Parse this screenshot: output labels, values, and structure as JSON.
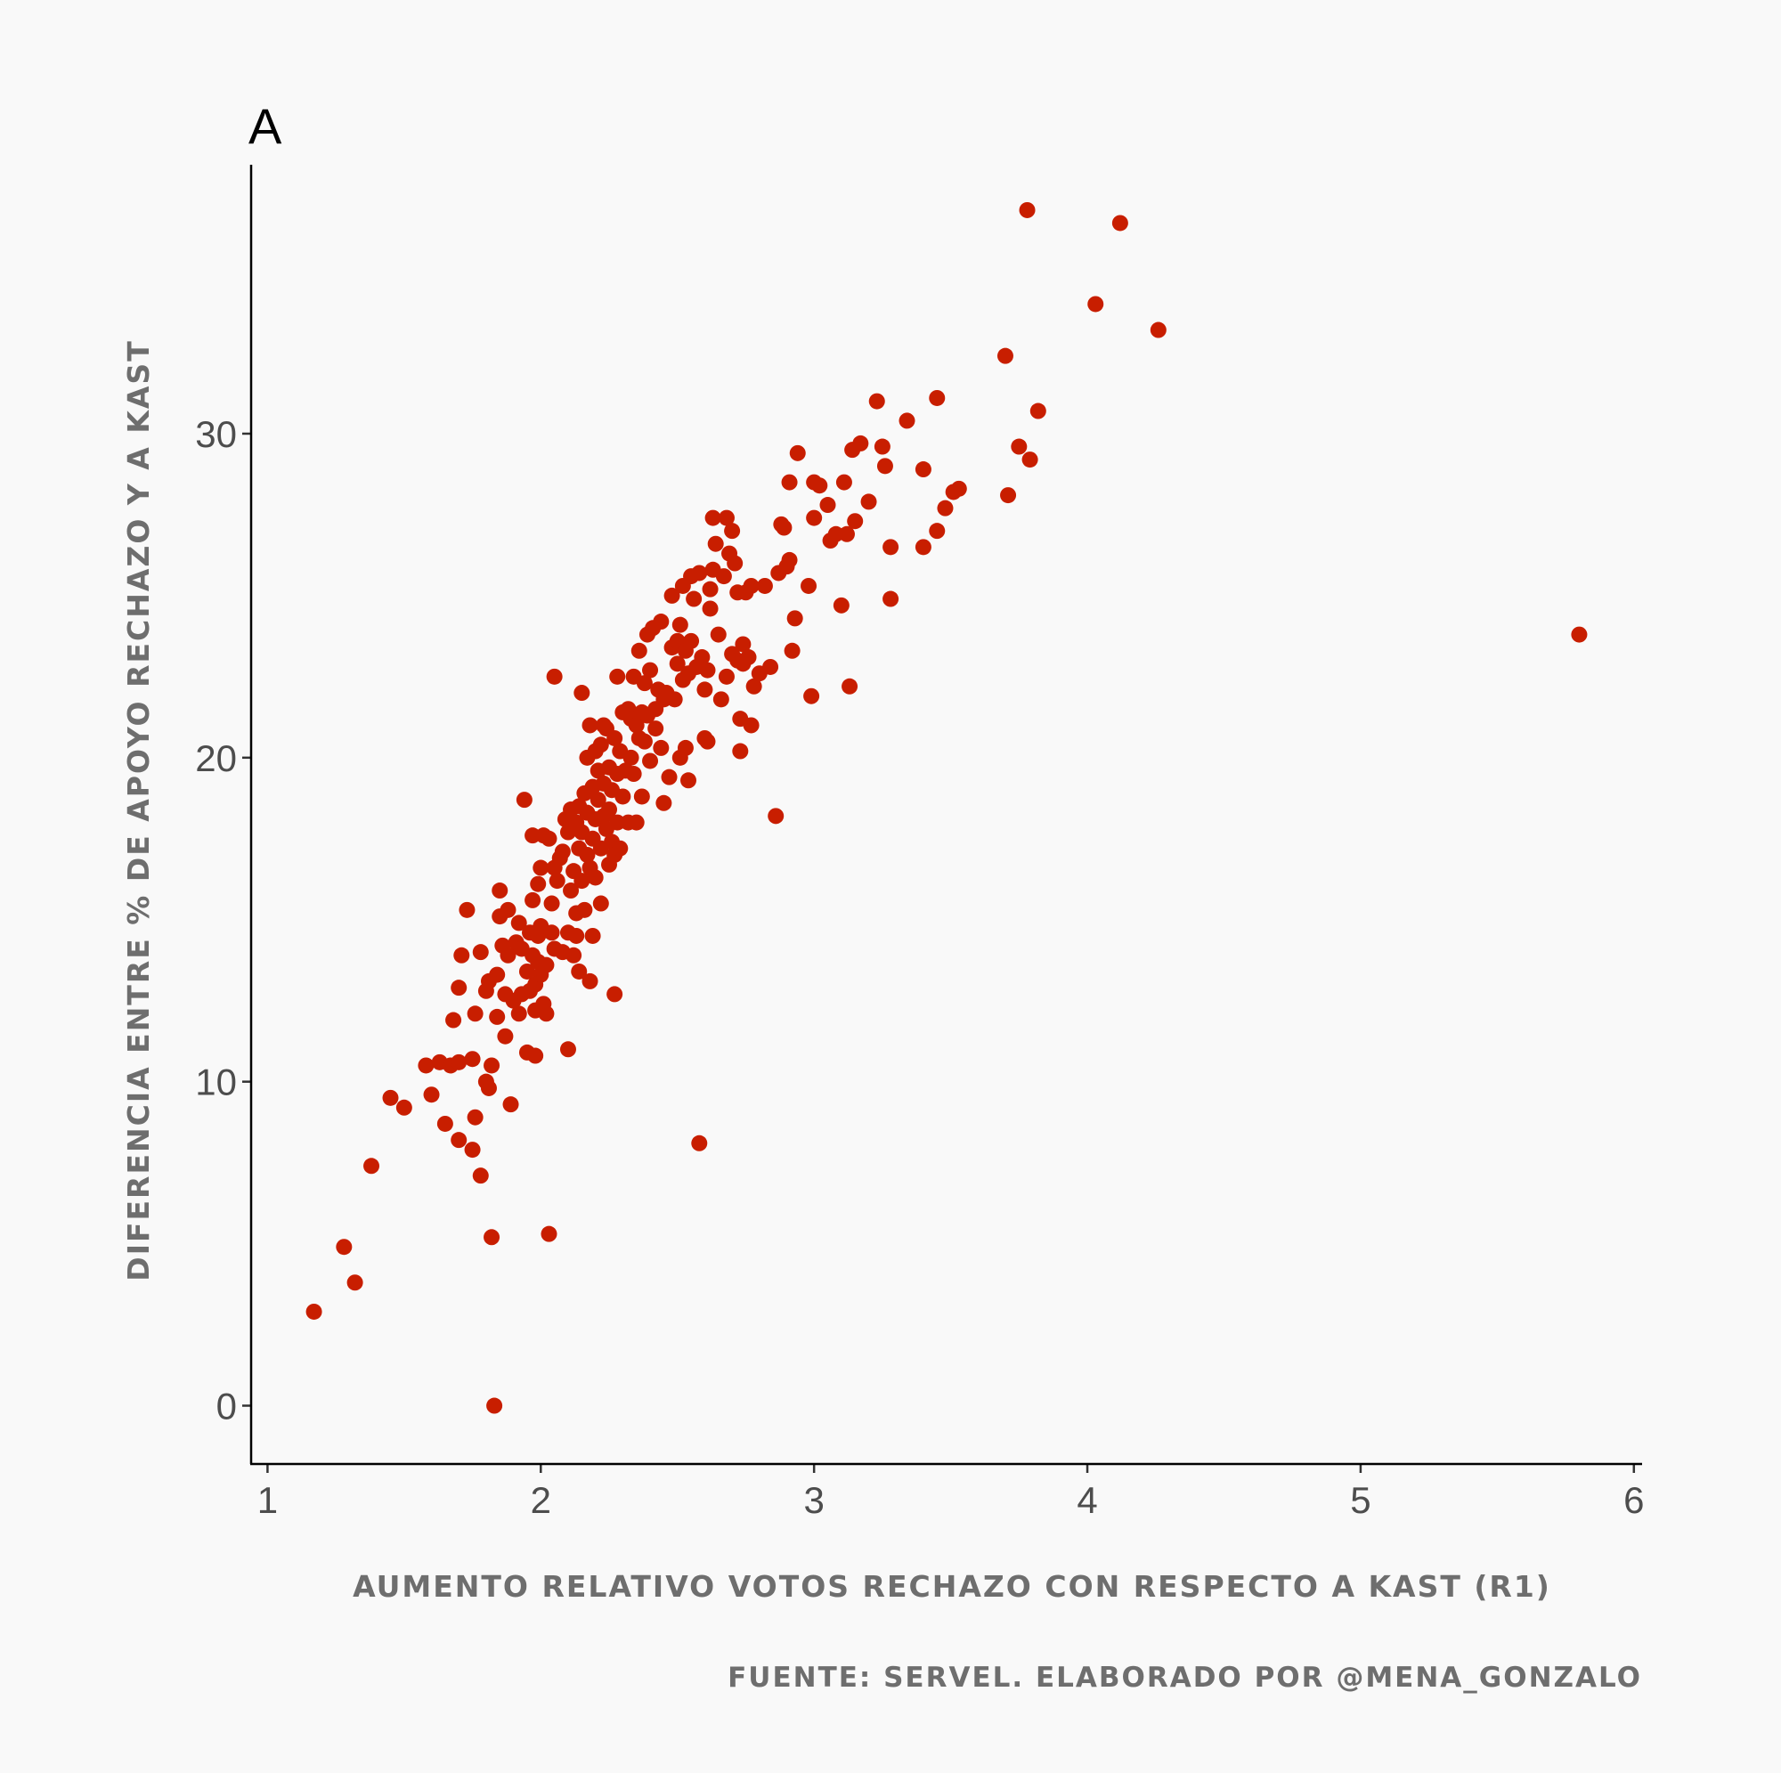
{
  "chart_data": {
    "type": "scatter",
    "tag": "A",
    "xlabel": "AUMENTO RELATIVO VOTOS RECHAZO CON RESPECTO A KAST (R1)",
    "ylabel": "DIFERENCIA ENTRE % DE APOYO RECHAZO Y A KAST",
    "caption": "FUENTE: SERVEL. ELABORADO POR @MENA_GONZALO",
    "xlim": [
      0.94,
      6.03
    ],
    "ylim": [
      -1.8,
      38.3
    ],
    "xticks": [
      1,
      2,
      3,
      4,
      5,
      6
    ],
    "yticks": [
      0,
      10,
      20,
      30
    ],
    "grid": false,
    "legend": "none",
    "point_color": "#c81e00",
    "background": "#f9f9f9",
    "points": [
      [
        1.17,
        2.9
      ],
      [
        1.28,
        4.9
      ],
      [
        1.32,
        3.8
      ],
      [
        1.38,
        7.4
      ],
      [
        1.45,
        9.5
      ],
      [
        1.5,
        9.2
      ],
      [
        1.58,
        10.5
      ],
      [
        1.6,
        9.6
      ],
      [
        1.63,
        10.6
      ],
      [
        1.65,
        8.7
      ],
      [
        1.67,
        10.5
      ],
      [
        1.68,
        11.9
      ],
      [
        1.7,
        8.2
      ],
      [
        1.7,
        10.6
      ],
      [
        1.7,
        12.9
      ],
      [
        1.71,
        13.9
      ],
      [
        1.73,
        15.3
      ],
      [
        1.75,
        7.9
      ],
      [
        1.75,
        10.7
      ],
      [
        1.76,
        12.1
      ],
      [
        1.76,
        8.9
      ],
      [
        1.78,
        7.1
      ],
      [
        1.78,
        14.0
      ],
      [
        1.8,
        12.8
      ],
      [
        1.8,
        10.0
      ],
      [
        1.81,
        9.8
      ],
      [
        1.81,
        13.1
      ],
      [
        1.82,
        5.2
      ],
      [
        1.82,
        10.5
      ],
      [
        1.83,
        0.0
      ],
      [
        1.84,
        12.0
      ],
      [
        1.84,
        13.3
      ],
      [
        1.85,
        15.1
      ],
      [
        1.85,
        15.9
      ],
      [
        1.86,
        14.2
      ],
      [
        1.87,
        11.4
      ],
      [
        1.87,
        12.7
      ],
      [
        1.88,
        13.9
      ],
      [
        1.88,
        15.3
      ],
      [
        1.89,
        9.3
      ],
      [
        1.9,
        12.5
      ],
      [
        1.91,
        14.3
      ],
      [
        1.92,
        12.1
      ],
      [
        1.92,
        14.9
      ],
      [
        1.93,
        12.7
      ],
      [
        1.93,
        14.1
      ],
      [
        1.94,
        18.7
      ],
      [
        1.95,
        10.9
      ],
      [
        1.95,
        13.4
      ],
      [
        1.96,
        12.8
      ],
      [
        1.96,
        14.6
      ],
      [
        1.97,
        13.9
      ],
      [
        1.97,
        15.6
      ],
      [
        1.97,
        17.6
      ],
      [
        1.98,
        10.8
      ],
      [
        1.98,
        12.2
      ],
      [
        1.98,
        13.0
      ],
      [
        1.99,
        13.7
      ],
      [
        1.99,
        14.5
      ],
      [
        1.99,
        16.1
      ],
      [
        2.0,
        13.3
      ],
      [
        2.0,
        14.8
      ],
      [
        2.0,
        16.6
      ],
      [
        2.01,
        12.4
      ],
      [
        2.01,
        17.6
      ],
      [
        2.02,
        12.1
      ],
      [
        2.02,
        13.6
      ],
      [
        2.03,
        17.5
      ],
      [
        2.03,
        5.3
      ],
      [
        2.04,
        14.6
      ],
      [
        2.04,
        15.5
      ],
      [
        2.05,
        16.6
      ],
      [
        2.05,
        22.5
      ],
      [
        2.05,
        14.1
      ],
      [
        2.06,
        16.2
      ],
      [
        2.07,
        16.9
      ],
      [
        2.08,
        17.1
      ],
      [
        2.08,
        14.0
      ],
      [
        2.09,
        18.1
      ],
      [
        2.1,
        11.0
      ],
      [
        2.1,
        17.7
      ],
      [
        2.1,
        14.6
      ],
      [
        2.11,
        18.4
      ],
      [
        2.11,
        15.9
      ],
      [
        2.12,
        16.5
      ],
      [
        2.12,
        13.9
      ],
      [
        2.13,
        18.0
      ],
      [
        2.13,
        15.2
      ],
      [
        2.13,
        14.5
      ],
      [
        2.14,
        17.2
      ],
      [
        2.14,
        18.5
      ],
      [
        2.14,
        13.4
      ],
      [
        2.15,
        22.0
      ],
      [
        2.15,
        16.2
      ],
      [
        2.15,
        17.7
      ],
      [
        2.16,
        15.3
      ],
      [
        2.16,
        18.9
      ],
      [
        2.17,
        17.0
      ],
      [
        2.17,
        18.3
      ],
      [
        2.17,
        20.0
      ],
      [
        2.18,
        21.0
      ],
      [
        2.18,
        13.1
      ],
      [
        2.18,
        16.6
      ],
      [
        2.19,
        17.5
      ],
      [
        2.19,
        19.1
      ],
      [
        2.19,
        14.5
      ],
      [
        2.2,
        18.1
      ],
      [
        2.2,
        20.2
      ],
      [
        2.2,
        16.3
      ],
      [
        2.21,
        19.6
      ],
      [
        2.21,
        18.7
      ],
      [
        2.22,
        17.2
      ],
      [
        2.22,
        20.4
      ],
      [
        2.22,
        15.5
      ],
      [
        2.23,
        18.2
      ],
      [
        2.23,
        19.2
      ],
      [
        2.23,
        21.0
      ],
      [
        2.24,
        17.8
      ],
      [
        2.24,
        20.9
      ],
      [
        2.25,
        18.4
      ],
      [
        2.25,
        19.7
      ],
      [
        2.25,
        16.7
      ],
      [
        2.26,
        17.4
      ],
      [
        2.26,
        19.0
      ],
      [
        2.27,
        17.0
      ],
      [
        2.27,
        20.6
      ],
      [
        2.27,
        12.7
      ],
      [
        2.28,
        22.5
      ],
      [
        2.28,
        18.0
      ],
      [
        2.28,
        19.5
      ],
      [
        2.29,
        17.2
      ],
      [
        2.29,
        20.2
      ],
      [
        2.3,
        21.4
      ],
      [
        2.3,
        18.8
      ],
      [
        2.31,
        19.6
      ],
      [
        2.32,
        21.5
      ],
      [
        2.32,
        18.0
      ],
      [
        2.33,
        20.0
      ],
      [
        2.33,
        21.2
      ],
      [
        2.34,
        22.5
      ],
      [
        2.34,
        19.5
      ],
      [
        2.35,
        21.0
      ],
      [
        2.35,
        18.0
      ],
      [
        2.36,
        20.6
      ],
      [
        2.36,
        23.3
      ],
      [
        2.37,
        21.4
      ],
      [
        2.37,
        18.8
      ],
      [
        2.38,
        22.3
      ],
      [
        2.38,
        20.5
      ],
      [
        2.39,
        23.8
      ],
      [
        2.39,
        21.3
      ],
      [
        2.4,
        22.7
      ],
      [
        2.4,
        19.9
      ],
      [
        2.41,
        24.0
      ],
      [
        2.42,
        21.5
      ],
      [
        2.42,
        20.9
      ],
      [
        2.43,
        22.1
      ],
      [
        2.44,
        24.2
      ],
      [
        2.44,
        20.3
      ],
      [
        2.45,
        21.8
      ],
      [
        2.45,
        18.6
      ],
      [
        2.46,
        22.0
      ],
      [
        2.47,
        19.4
      ],
      [
        2.48,
        23.4
      ],
      [
        2.48,
        25.0
      ],
      [
        2.49,
        21.8
      ],
      [
        2.5,
        22.9
      ],
      [
        2.5,
        23.6
      ],
      [
        2.51,
        20.0
      ],
      [
        2.51,
        24.1
      ],
      [
        2.52,
        25.3
      ],
      [
        2.52,
        22.4
      ],
      [
        2.53,
        20.3
      ],
      [
        2.53,
        23.3
      ],
      [
        2.54,
        19.3
      ],
      [
        2.54,
        22.6
      ],
      [
        2.55,
        25.6
      ],
      [
        2.55,
        23.6
      ],
      [
        2.56,
        24.9
      ],
      [
        2.57,
        22.8
      ],
      [
        2.58,
        25.7
      ],
      [
        2.58,
        8.1
      ],
      [
        2.59,
        23.1
      ],
      [
        2.6,
        22.1
      ],
      [
        2.6,
        20.6
      ],
      [
        2.61,
        20.5
      ],
      [
        2.61,
        22.7
      ],
      [
        2.62,
        24.6
      ],
      [
        2.62,
        25.2
      ],
      [
        2.63,
        27.4
      ],
      [
        2.63,
        25.8
      ],
      [
        2.64,
        26.6
      ],
      [
        2.65,
        23.8
      ],
      [
        2.66,
        21.8
      ],
      [
        2.67,
        25.6
      ],
      [
        2.68,
        27.4
      ],
      [
        2.68,
        22.5
      ],
      [
        2.69,
        26.3
      ],
      [
        2.7,
        23.2
      ],
      [
        2.7,
        27.0
      ],
      [
        2.71,
        26.0
      ],
      [
        2.72,
        23.0
      ],
      [
        2.72,
        25.1
      ],
      [
        2.73,
        21.2
      ],
      [
        2.73,
        20.2
      ],
      [
        2.74,
        22.9
      ],
      [
        2.74,
        23.5
      ],
      [
        2.75,
        25.1
      ],
      [
        2.76,
        23.1
      ],
      [
        2.77,
        21.0
      ],
      [
        2.77,
        25.3
      ],
      [
        2.78,
        22.2
      ],
      [
        2.8,
        22.6
      ],
      [
        2.82,
        25.3
      ],
      [
        2.84,
        22.8
      ],
      [
        2.86,
        18.2
      ],
      [
        2.87,
        25.7
      ],
      [
        2.88,
        27.2
      ],
      [
        2.89,
        27.1
      ],
      [
        2.9,
        25.9
      ],
      [
        2.91,
        26.1
      ],
      [
        2.91,
        28.5
      ],
      [
        2.92,
        23.3
      ],
      [
        2.93,
        24.3
      ],
      [
        2.94,
        29.4
      ],
      [
        2.98,
        25.3
      ],
      [
        2.99,
        21.9
      ],
      [
        3.0,
        28.5
      ],
      [
        3.0,
        27.4
      ],
      [
        3.02,
        28.4
      ],
      [
        3.05,
        27.8
      ],
      [
        3.06,
        26.7
      ],
      [
        3.08,
        26.9
      ],
      [
        3.1,
        24.7
      ],
      [
        3.11,
        28.5
      ],
      [
        3.12,
        26.9
      ],
      [
        3.13,
        22.2
      ],
      [
        3.14,
        29.5
      ],
      [
        3.15,
        27.3
      ],
      [
        3.17,
        29.7
      ],
      [
        3.2,
        27.9
      ],
      [
        3.23,
        31.0
      ],
      [
        3.25,
        29.6
      ],
      [
        3.26,
        29.0
      ],
      [
        3.28,
        24.9
      ],
      [
        3.28,
        26.5
      ],
      [
        3.34,
        30.4
      ],
      [
        3.4,
        26.5
      ],
      [
        3.4,
        28.9
      ],
      [
        3.45,
        27.0
      ],
      [
        3.45,
        31.1
      ],
      [
        3.48,
        27.7
      ],
      [
        3.51,
        28.2
      ],
      [
        3.53,
        28.3
      ],
      [
        3.7,
        32.4
      ],
      [
        3.71,
        28.1
      ],
      [
        3.75,
        29.6
      ],
      [
        3.78,
        36.9
      ],
      [
        3.79,
        29.2
      ],
      [
        3.82,
        30.7
      ],
      [
        4.03,
        34.0
      ],
      [
        4.12,
        36.5
      ],
      [
        4.26,
        33.2
      ],
      [
        5.8,
        23.8
      ]
    ]
  }
}
